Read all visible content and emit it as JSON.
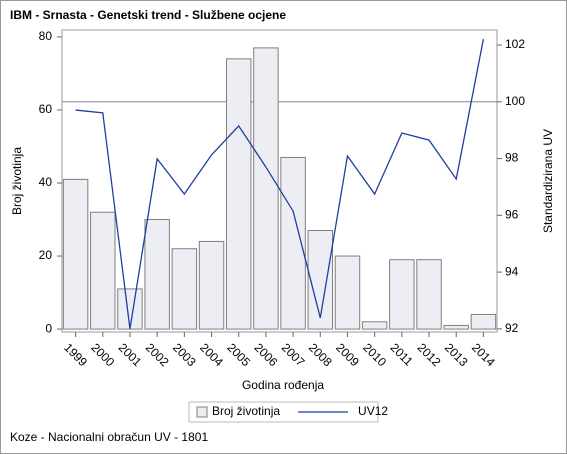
{
  "chart_data": {
    "type": "bar-line",
    "title": "IBM - Srnasta - Genetski trend - Službene ocjene",
    "x_label": "Godina rođenja",
    "y_label": "Broj životinja",
    "y2_label": "Standardizirana UV",
    "footnote": "Koze - Nacionalni obračun UV - 1801",
    "categories": [
      "1999",
      "2000",
      "2001",
      "2002",
      "2003",
      "2004",
      "2005",
      "2006",
      "2007",
      "2008",
      "2009",
      "2010",
      "2011",
      "2012",
      "2013",
      "2014"
    ],
    "series": [
      {
        "name": "Broj životinja",
        "type": "bar",
        "color": "#eceef4",
        "values": [
          41,
          32,
          11,
          30,
          22,
          24,
          74,
          77,
          47,
          27,
          20,
          2,
          19,
          19,
          1,
          4
        ]
      },
      {
        "name": "UV12",
        "type": "line",
        "axis": "y2",
        "color": "#1f3f9f",
        "values": [
          99.71,
          99.61,
          92.0,
          97.99,
          96.75,
          98.13,
          99.15,
          97.7,
          96.15,
          92.39,
          98.09,
          96.75,
          98.9,
          98.65,
          97.28,
          102.21
        ]
      }
    ],
    "ylim": [
      -0.8,
      81.9
    ],
    "yticks": [
      0,
      20,
      40,
      60,
      80
    ],
    "y2lim": [
      91.89,
      102.53
    ],
    "y2ticks": [
      92,
      94,
      96,
      98,
      100,
      102
    ],
    "reference_line": {
      "axis": "y2",
      "value": 100
    },
    "legend": "bottom"
  }
}
